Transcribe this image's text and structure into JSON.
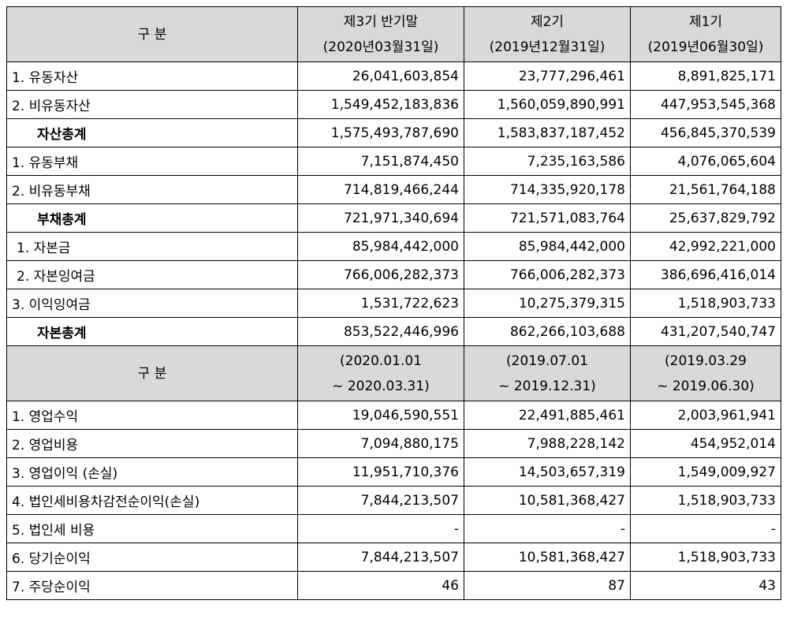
{
  "balance_header": {
    "label": "구 분",
    "cols": [
      {
        "line1": "제3기 반기말",
        "line2": "(2020년03월31일)"
      },
      {
        "line1": "제2기",
        "line2": "(2019년12월31일)"
      },
      {
        "line1": "제1기",
        "line2": "(2019년06월30일)"
      }
    ]
  },
  "balance_rows": [
    {
      "label": "1. 유동자산",
      "style": "",
      "v": [
        "26,041,603,854",
        "23,777,296,461",
        "8,891,825,171"
      ]
    },
    {
      "label": "2. 비유동자산",
      "style": "",
      "v": [
        "1,549,452,183,836",
        "1,560,059,890,991",
        "447,953,545,368"
      ]
    },
    {
      "label": "자산총계",
      "style": "bold",
      "v": [
        "1,575,493,787,690",
        "1,583,837,187,452",
        "456,845,370,539"
      ]
    },
    {
      "label": "1. 유동부채",
      "style": "",
      "v": [
        "7,151,874,450",
        "7,235,163,586",
        "4,076,065,604"
      ]
    },
    {
      "label": "2. 비유동부채",
      "style": "",
      "v": [
        "714,819,466,244",
        "714,335,920,178",
        "21,561,764,188"
      ]
    },
    {
      "label": "부채총계",
      "style": "bold",
      "v": [
        "721,971,340,694",
        "721,571,083,764",
        "25,637,829,792"
      ]
    },
    {
      "label": "1. 자본금",
      "style": "ind",
      "v": [
        "85,984,442,000",
        "85,984,442,000",
        "42,992,221,000"
      ]
    },
    {
      "label": "2. 자본잉여금",
      "style": "ind",
      "v": [
        "766,006,282,373",
        "766,006,282,373",
        "386,696,416,014"
      ]
    },
    {
      "label": "3. 이익잉여금",
      "style": "",
      "v": [
        "1,531,722,623",
        "10,275,379,315",
        "1,518,903,733"
      ]
    },
    {
      "label": "자본총계",
      "style": "bold",
      "v": [
        "853,522,446,996",
        "862,266,103,688",
        "431,207,540,747"
      ]
    }
  ],
  "income_header": {
    "label": "구 분",
    "cols": [
      {
        "line1": "(2020.01.01",
        "line2": "~ 2020.03.31)"
      },
      {
        "line1": "(2019.07.01",
        "line2": "~ 2019.12.31)"
      },
      {
        "line1": "(2019.03.29",
        "line2": "~ 2019.06.30)"
      }
    ]
  },
  "income_rows": [
    {
      "label": "1. 영업수익",
      "v": [
        "19,046,590,551",
        "22,491,885,461",
        "2,003,961,941"
      ]
    },
    {
      "label": "2. 영업비용",
      "v": [
        "7,094,880,175",
        "7,988,228,142",
        "454,952,014"
      ]
    },
    {
      "label": "3. 영업이익 (손실)",
      "v": [
        "11,951,710,376",
        "14,503,657,319",
        "1,549,009,927"
      ]
    },
    {
      "label": "4. 법인세비용차감전순이익(손실)",
      "v": [
        "7,844,213,507",
        "10,581,368,427",
        "1,518,903,733"
      ]
    },
    {
      "label": "5. 법인세 비용",
      "v": [
        "-",
        "-",
        "-"
      ]
    },
    {
      "label": "6. 당기순이익",
      "v": [
        "7,844,213,507",
        "10,581,368,427",
        "1,518,903,733"
      ]
    },
    {
      "label": "7. 주당순이익",
      "v": [
        "46",
        "87",
        "43"
      ]
    }
  ]
}
